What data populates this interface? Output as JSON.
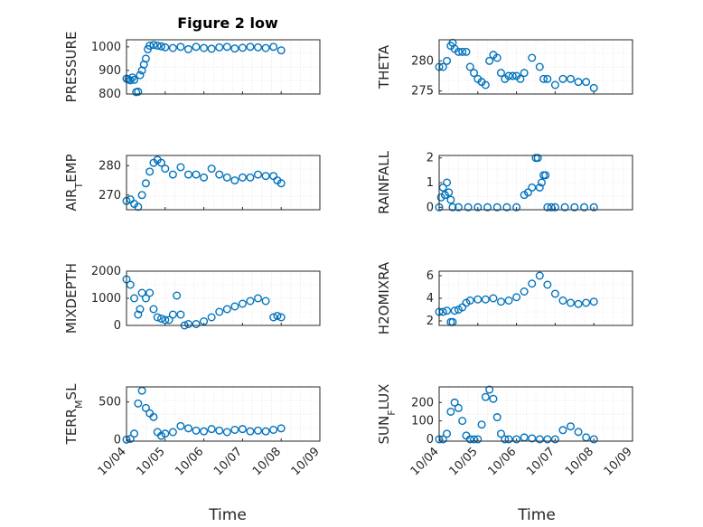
{
  "figure": {
    "title": "Figure 2 low"
  },
  "chart_data": [
    {
      "type": "scatter",
      "ylabel": "PRESSURE",
      "ylim": [
        800,
        1030
      ],
      "xlim": [
        0,
        5
      ],
      "yticks": [
        800,
        900,
        1000
      ],
      "xticks": [
        0,
        1,
        2,
        3,
        4,
        5
      ],
      "xtick_labels": [
        "10/04",
        "10/05",
        "10/06",
        "10/07",
        "10/08",
        "10/09"
      ],
      "show_xtick_labels": false,
      "color": "#0072BD",
      "grid": true,
      "series": [
        {
          "x": [
            0,
            0.05,
            0.1,
            0.15,
            0.2,
            0.25,
            0.3,
            0.35,
            0.4,
            0.45,
            0.5,
            0.55,
            0.6,
            0.7,
            0.8,
            0.9,
            1.0,
            1.2,
            1.4,
            1.6,
            1.8,
            2.0,
            2.2,
            2.4,
            2.6,
            2.8,
            3.0,
            3.2,
            3.4,
            3.6,
            3.8,
            4.0
          ],
          "y": [
            865,
            862,
            858,
            870,
            860,
            808,
            810,
            880,
            900,
            925,
            950,
            990,
            1005,
            1008,
            1005,
            1002,
            998,
            995,
            1000,
            990,
            1000,
            995,
            992,
            998,
            1000,
            993,
            996,
            1000,
            998,
            995,
            1000,
            985
          ]
        }
      ]
    },
    {
      "type": "scatter",
      "ylabel": "THETA",
      "ylim": [
        274.5,
        283.5
      ],
      "xlim": [
        0,
        5
      ],
      "yticks": [
        275,
        280
      ],
      "xticks": [
        0,
        1,
        2,
        3,
        4,
        5
      ],
      "xtick_labels": [
        "10/04",
        "10/05",
        "10/06",
        "10/07",
        "10/08",
        "10/09"
      ],
      "show_xtick_labels": false,
      "color": "#0072BD",
      "grid": true,
      "series": [
        {
          "x": [
            0,
            0.1,
            0.2,
            0.3,
            0.35,
            0.4,
            0.5,
            0.6,
            0.7,
            0.8,
            0.9,
            1.0,
            1.1,
            1.2,
            1.3,
            1.4,
            1.5,
            1.6,
            1.7,
            1.8,
            1.9,
            2.0,
            2.1,
            2.2,
            2.4,
            2.6,
            2.7,
            2.8,
            3.0,
            3.2,
            3.4,
            3.6,
            3.8,
            4.0
          ],
          "y": [
            279,
            279,
            280,
            282.5,
            283,
            282,
            281.5,
            281.5,
            281.5,
            279,
            278,
            277,
            276.5,
            276,
            280,
            281,
            280.5,
            278,
            277,
            277.5,
            277.5,
            277.5,
            277,
            278,
            280.5,
            279,
            277,
            277,
            276,
            277,
            277,
            276.5,
            276.5,
            275.5
          ]
        }
      ]
    },
    {
      "type": "scatter",
      "ylabel": "AIR_TEMP",
      "ylim": [
        265,
        283.5
      ],
      "xlim": [
        0,
        5
      ],
      "yticks": [
        270,
        280
      ],
      "xticks": [
        0,
        1,
        2,
        3,
        4,
        5
      ],
      "xtick_labels": [
        "10/04",
        "10/05",
        "10/06",
        "10/07",
        "10/08",
        "10/09"
      ],
      "show_xtick_labels": false,
      "color": "#0072BD",
      "grid": true,
      "series": [
        {
          "x": [
            0,
            0.1,
            0.2,
            0.3,
            0.4,
            0.5,
            0.6,
            0.7,
            0.8,
            0.9,
            1.0,
            1.2,
            1.4,
            1.6,
            1.8,
            2.0,
            2.2,
            2.4,
            2.6,
            2.8,
            3.0,
            3.2,
            3.4,
            3.6,
            3.8,
            3.9,
            4.0
          ],
          "y": [
            268,
            268.5,
            267,
            266,
            270,
            274,
            278,
            281,
            282,
            281,
            279,
            277,
            279.5,
            277,
            277,
            276,
            279,
            277,
            276,
            275,
            276,
            276,
            277,
            276.5,
            276.5,
            275,
            274
          ]
        }
      ]
    },
    {
      "type": "scatter",
      "ylabel": "RAINFALL",
      "ylim": [
        -0.1,
        2.1
      ],
      "xlim": [
        0,
        5
      ],
      "yticks": [
        0,
        1,
        2
      ],
      "xticks": [
        0,
        1,
        2,
        3,
        4,
        5
      ],
      "xtick_labels": [
        "10/04",
        "10/05",
        "10/06",
        "10/07",
        "10/08",
        "10/09"
      ],
      "show_xtick_labels": false,
      "color": "#0072BD",
      "grid": true,
      "series": [
        {
          "x": [
            0,
            0.05,
            0.1,
            0.15,
            0.2,
            0.25,
            0.3,
            0.35,
            0.5,
            0.75,
            1.0,
            1.25,
            1.5,
            1.75,
            2.0,
            2.2,
            2.3,
            2.4,
            2.5,
            2.55,
            2.6,
            2.65,
            2.7,
            2.75,
            2.8,
            2.9,
            3.0,
            3.25,
            3.5,
            3.75,
            4.0
          ],
          "y": [
            0,
            0.4,
            0.8,
            0.5,
            1.0,
            0.6,
            0.3,
            0,
            0,
            0,
            0,
            0,
            0,
            0,
            0,
            0.5,
            0.6,
            0.8,
            2.0,
            2.0,
            0.8,
            1.0,
            1.3,
            1.3,
            0,
            0,
            0,
            0,
            0,
            0,
            0
          ]
        }
      ]
    },
    {
      "type": "scatter",
      "ylabel": "MIXDEPTH",
      "ylim": [
        0,
        2000
      ],
      "xlim": [
        0,
        5
      ],
      "yticks": [
        0,
        1000,
        2000
      ],
      "xticks": [
        0,
        1,
        2,
        3,
        4,
        5
      ],
      "xtick_labels": [
        "10/04",
        "10/05",
        "10/06",
        "10/07",
        "10/08",
        "10/09"
      ],
      "show_xtick_labels": false,
      "color": "#0072BD",
      "grid": true,
      "series": [
        {
          "x": [
            0,
            0.1,
            0.2,
            0.3,
            0.35,
            0.4,
            0.5,
            0.6,
            0.7,
            0.8,
            0.9,
            1.0,
            1.1,
            1.2,
            1.3,
            1.4,
            1.5,
            1.6,
            1.8,
            2.0,
            2.2,
            2.4,
            2.6,
            2.8,
            3.0,
            3.2,
            3.4,
            3.6,
            3.8,
            3.9,
            4.0
          ],
          "y": [
            1700,
            1500,
            1000,
            400,
            600,
            1200,
            1000,
            1200,
            600,
            300,
            250,
            200,
            200,
            400,
            1100,
            400,
            0,
            50,
            50,
            150,
            300,
            500,
            600,
            700,
            800,
            900,
            1000,
            900,
            300,
            350,
            300
          ]
        }
      ]
    },
    {
      "type": "scatter",
      "ylabel": "H2OMIXRA",
      "ylim": [
        1.6,
        6.4
      ],
      "xlim": [
        0,
        5
      ],
      "yticks": [
        2,
        4,
        6
      ],
      "xticks": [
        0,
        1,
        2,
        3,
        4,
        5
      ],
      "xtick_labels": [
        "10/04",
        "10/05",
        "10/06",
        "10/07",
        "10/08",
        "10/09"
      ],
      "show_xtick_labels": false,
      "color": "#0072BD",
      "grid": true,
      "series": [
        {
          "x": [
            0,
            0.1,
            0.2,
            0.3,
            0.35,
            0.4,
            0.5,
            0.6,
            0.7,
            0.8,
            1.0,
            1.2,
            1.4,
            1.6,
            1.8,
            2.0,
            2.2,
            2.4,
            2.6,
            2.8,
            3.0,
            3.2,
            3.4,
            3.6,
            3.8,
            4.0
          ],
          "y": [
            2.8,
            2.8,
            2.9,
            1.9,
            1.9,
            2.9,
            3.0,
            3.2,
            3.6,
            3.8,
            3.9,
            3.9,
            4.0,
            3.7,
            3.8,
            4.1,
            4.6,
            5.3,
            6.0,
            5.2,
            4.4,
            3.8,
            3.6,
            3.5,
            3.6,
            3.7
          ]
        }
      ]
    },
    {
      "type": "scatter",
      "ylabel": "TERR_MSL",
      "ylim": [
        -20,
        700
      ],
      "xlim": [
        0,
        5
      ],
      "yticks": [
        0,
        500
      ],
      "xticks": [
        0,
        1,
        2,
        3,
        4,
        5
      ],
      "xtick_labels": [
        "10/04",
        "10/05",
        "10/06",
        "10/07",
        "10/08",
        "10/09"
      ],
      "show_xtick_labels": true,
      "color": "#0072BD",
      "grid": true,
      "series": [
        {
          "x": [
            0,
            0.1,
            0.2,
            0.3,
            0.4,
            0.5,
            0.6,
            0.7,
            0.8,
            0.9,
            1.0,
            1.2,
            1.4,
            1.6,
            1.8,
            2.0,
            2.2,
            2.4,
            2.6,
            2.8,
            3.0,
            3.2,
            3.4,
            3.6,
            3.8,
            4.0
          ],
          "y": [
            0,
            10,
            80,
            480,
            650,
            420,
            350,
            300,
            100,
            50,
            80,
            100,
            180,
            150,
            120,
            110,
            140,
            120,
            100,
            130,
            140,
            110,
            120,
            110,
            130,
            150
          ]
        }
      ]
    },
    {
      "type": "scatter",
      "ylabel": "SUN_FLUX",
      "ylim": [
        -10,
        285
      ],
      "xlim": [
        0,
        5
      ],
      "yticks": [
        0,
        100,
        200
      ],
      "xticks": [
        0,
        1,
        2,
        3,
        4,
        5
      ],
      "xtick_labels": [
        "10/04",
        "10/05",
        "10/06",
        "10/07",
        "10/08",
        "10/09"
      ],
      "show_xtick_labels": true,
      "color": "#0072BD",
      "grid": true,
      "series": [
        {
          "x": [
            0,
            0.1,
            0.2,
            0.3,
            0.4,
            0.5,
            0.6,
            0.7,
            0.8,
            0.9,
            1.0,
            1.1,
            1.2,
            1.3,
            1.4,
            1.5,
            1.6,
            1.7,
            1.8,
            2.0,
            2.2,
            2.4,
            2.6,
            2.8,
            3.0,
            3.2,
            3.4,
            3.6,
            3.8,
            4.0
          ],
          "y": [
            0,
            0,
            30,
            150,
            200,
            170,
            100,
            20,
            0,
            0,
            0,
            80,
            230,
            270,
            220,
            120,
            30,
            0,
            0,
            0,
            10,
            5,
            0,
            0,
            0,
            50,
            70,
            40,
            10,
            0
          ]
        }
      ]
    }
  ],
  "xlabel_left": "Time",
  "xlabel_right": "Time"
}
